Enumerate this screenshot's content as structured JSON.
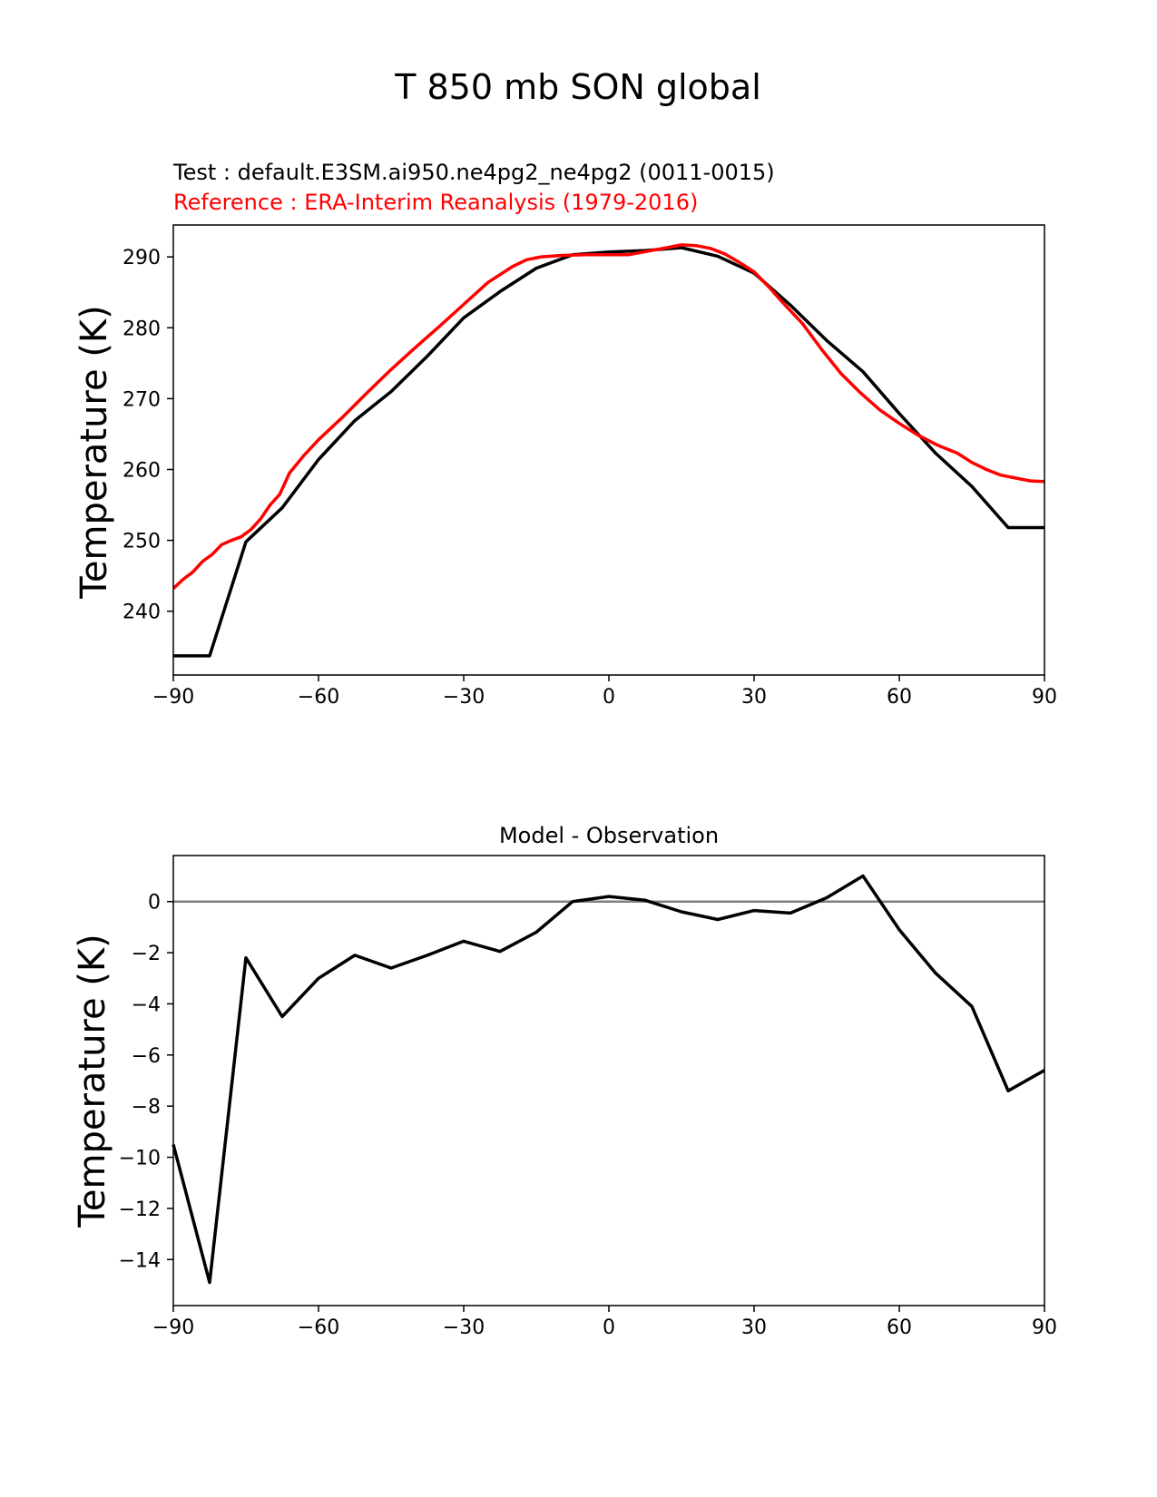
{
  "figure": {
    "suptitle": "T 850 mb SON global"
  },
  "chart_data": [
    {
      "type": "line",
      "test_label": "Test : default.E3SM.ai950.ne4pg2_ne4pg2 (0011-0015)",
      "reference_label": "Reference : ERA-Interim Reanalysis (1979-2016)",
      "xlabel": "",
      "ylabel": "Temperature (K)",
      "xlim": [
        -90,
        90
      ],
      "ylim": [
        231,
        294.5
      ],
      "xticks": [
        -90,
        -60,
        -30,
        0,
        30,
        60,
        90
      ],
      "xtick_labels": [
        "−90",
        "−60",
        "−30",
        "0",
        "30",
        "60",
        "90"
      ],
      "yticks": [
        240,
        250,
        260,
        270,
        280,
        290
      ],
      "ytick_labels": [
        "240",
        "250",
        "260",
        "270",
        "280",
        "290"
      ],
      "series": [
        {
          "name": "Test",
          "color": "#000000",
          "x": [
            -90,
            -82.5,
            -75,
            -67.5,
            -60,
            -52.5,
            -45,
            -37.5,
            -30,
            -22.5,
            -15,
            -7.5,
            0,
            7.5,
            15,
            22.5,
            30,
            37.5,
            45,
            52.5,
            60,
            67.5,
            75,
            82.5,
            90
          ],
          "y": [
            233.7,
            233.7,
            249.8,
            254.6,
            261.4,
            266.9,
            271.0,
            276.0,
            281.4,
            285.1,
            288.4,
            290.3,
            290.7,
            290.9,
            291.3,
            290.1,
            287.7,
            283.2,
            278.2,
            273.8,
            267.9,
            262.3,
            257.6,
            251.8,
            251.8
          ]
        },
        {
          "name": "Reference",
          "color": "#ff0000",
          "x": [
            -90,
            -88,
            -86,
            -84,
            -82,
            -80,
            -78,
            -76,
            -74,
            -72,
            -70,
            -68,
            -66,
            -63,
            -60,
            -55,
            -50,
            -45,
            -40,
            -35,
            -30,
            -25,
            -20,
            -17,
            -14,
            -10,
            -5,
            0,
            4,
            8,
            12,
            15,
            18,
            21,
            24,
            27,
            30,
            33,
            36,
            40,
            44,
            48,
            52,
            56,
            60,
            64,
            68,
            72,
            75,
            78,
            81,
            84,
            87,
            90
          ],
          "y": [
            243.2,
            244.5,
            245.5,
            247.0,
            248.0,
            249.4,
            250.0,
            250.5,
            251.5,
            253.0,
            255.0,
            256.5,
            259.5,
            262.0,
            264.2,
            267.4,
            270.8,
            274.1,
            277.2,
            280.2,
            283.3,
            286.4,
            288.6,
            289.6,
            290.0,
            290.2,
            290.3,
            290.3,
            290.3,
            290.8,
            291.3,
            291.7,
            291.6,
            291.2,
            290.4,
            289.2,
            287.9,
            285.8,
            283.5,
            280.6,
            276.9,
            273.5,
            270.8,
            268.4,
            266.5,
            264.8,
            263.4,
            262.3,
            261.0,
            260.0,
            259.2,
            258.8,
            258.4,
            258.3
          ]
        }
      ]
    },
    {
      "type": "line",
      "title": "Model - Observation",
      "xlabel": "",
      "ylabel": "Temperature (K)",
      "xlim": [
        -90,
        90
      ],
      "ylim": [
        -15.8,
        1.8
      ],
      "xticks": [
        -90,
        -60,
        -30,
        0,
        30,
        60,
        90
      ],
      "xtick_labels": [
        "−90",
        "−60",
        "−30",
        "0",
        "30",
        "60",
        "90"
      ],
      "yticks": [
        -14,
        -12,
        -10,
        -8,
        -6,
        -4,
        -2,
        0
      ],
      "ytick_labels": [
        "−14",
        "−12",
        "−10",
        "−8",
        "−6",
        "−4",
        "−2",
        "0"
      ],
      "zero_line": {
        "y": 0,
        "color": "#808080"
      },
      "series": [
        {
          "name": "Model - Observation",
          "color": "#000000",
          "x": [
            -90,
            -82.5,
            -75,
            -67.5,
            -60,
            -52.5,
            -45,
            -37.5,
            -30,
            -22.5,
            -15,
            -7.5,
            0,
            7.5,
            15,
            22.5,
            30,
            37.5,
            45,
            52.5,
            60,
            67.5,
            75,
            82.5,
            90
          ],
          "y": [
            -9.5,
            -14.9,
            -2.2,
            -4.5,
            -3.0,
            -2.1,
            -2.6,
            -2.1,
            -1.55,
            -1.95,
            -1.2,
            0.0,
            0.2,
            0.05,
            -0.4,
            -0.7,
            -0.35,
            -0.45,
            0.15,
            1.0,
            -1.1,
            -2.8,
            -4.1,
            -7.4,
            -6.6
          ]
        }
      ]
    }
  ]
}
